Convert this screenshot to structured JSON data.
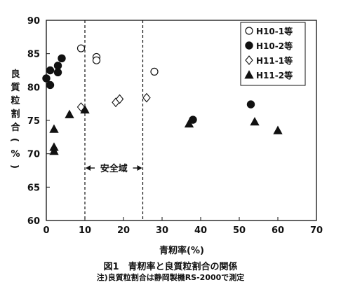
{
  "chart_data": {
    "type": "scatter",
    "xlabel": "青籾率(%)",
    "ylabel": "良質粒割合(%)",
    "xlim": [
      0,
      70
    ],
    "ylim": [
      60,
      90
    ],
    "xticks": [
      0,
      10,
      20,
      30,
      40,
      50,
      60,
      70
    ],
    "yticks": [
      60,
      65,
      70,
      75,
      80,
      85,
      90
    ],
    "grid": false,
    "legend_position": "top-right",
    "reference_lines_x": [
      10,
      25
    ],
    "annotation": "安全域",
    "series": [
      {
        "name": "H10-1等",
        "marker": "open-circle",
        "points": [
          [
            9,
            85.8
          ],
          [
            13,
            84.5
          ],
          [
            13,
            84.0
          ],
          [
            28,
            82.3
          ]
        ]
      },
      {
        "name": "H10-2等",
        "marker": "filled-circle",
        "points": [
          [
            0,
            81.3
          ],
          [
            1,
            82.5
          ],
          [
            1,
            80.3
          ],
          [
            3,
            83.2
          ],
          [
            3,
            82.2
          ],
          [
            4,
            84.3
          ],
          [
            38,
            75.1
          ],
          [
            53,
            77.4
          ]
        ]
      },
      {
        "name": "H11-1等",
        "marker": "open-diamond",
        "points": [
          [
            9,
            77.0
          ],
          [
            18,
            77.7
          ],
          [
            19,
            78.2
          ],
          [
            26,
            78.4
          ]
        ]
      },
      {
        "name": "H11-2等",
        "marker": "filled-triangle",
        "points": [
          [
            2,
            73.7
          ],
          [
            2,
            71.0
          ],
          [
            2,
            70.4
          ],
          [
            6,
            75.9
          ],
          [
            10,
            76.6
          ],
          [
            37,
            74.5
          ],
          [
            54,
            74.8
          ],
          [
            60,
            73.5
          ]
        ]
      }
    ]
  },
  "caption": {
    "title": "図1　青籾率と良質粒割合の関係",
    "note": "注)良質粒割合は静岡製機RS-2000で測定"
  }
}
